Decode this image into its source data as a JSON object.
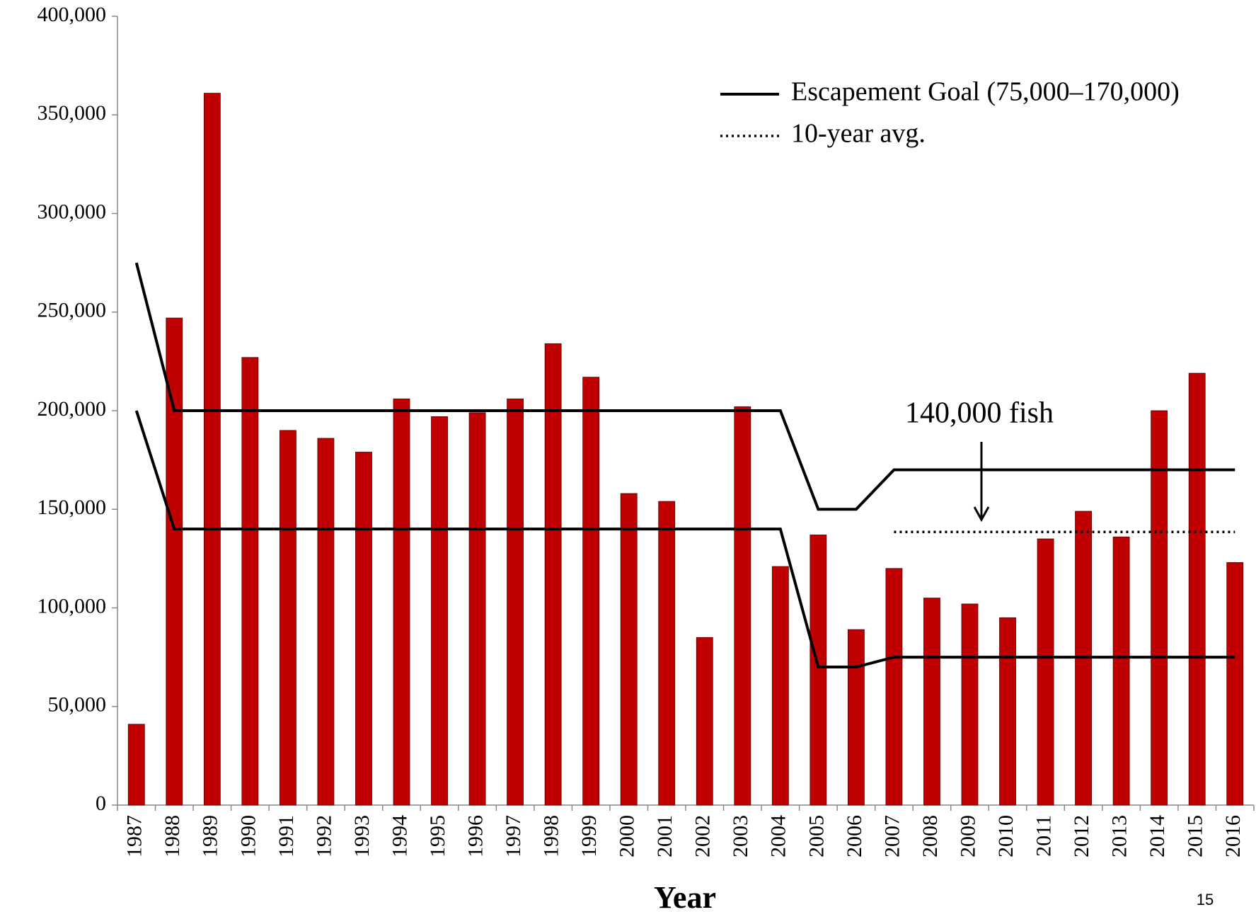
{
  "chart_data": {
    "type": "bar",
    "categories": [
      "1987",
      "1988",
      "1989",
      "1990",
      "1991",
      "1992",
      "1993",
      "1994",
      "1995",
      "1996",
      "1997",
      "1998",
      "1999",
      "2000",
      "2001",
      "2002",
      "2003",
      "2004",
      "2005",
      "2006",
      "2007",
      "2008",
      "2009",
      "2010",
      "2011",
      "2012",
      "2013",
      "2014",
      "2015",
      "2016"
    ],
    "values": [
      41000,
      247000,
      361000,
      227000,
      190000,
      186000,
      179000,
      206000,
      197000,
      199000,
      206000,
      234000,
      217000,
      158000,
      154000,
      85000,
      202000,
      121000,
      137000,
      89000,
      120000,
      105000,
      102000,
      95000,
      135000,
      149000,
      136000,
      200000,
      219000,
      123000
    ],
    "color": "#c00000",
    "lines": [
      {
        "name": "Escapement Goal (75,000–170,000)",
        "color": "#000000",
        "dash": "solid",
        "values": [
          275000,
          200000,
          200000,
          200000,
          200000,
          200000,
          200000,
          200000,
          200000,
          200000,
          200000,
          200000,
          200000,
          200000,
          200000,
          200000,
          200000,
          200000,
          150000,
          150000,
          170000,
          170000,
          170000,
          170000,
          170000,
          170000,
          170000,
          170000,
          170000,
          170000
        ]
      },
      {
        "color": "#000000",
        "dash": "solid",
        "values": [
          200000,
          140000,
          140000,
          140000,
          140000,
          140000,
          140000,
          140000,
          140000,
          140000,
          140000,
          140000,
          140000,
          140000,
          140000,
          140000,
          140000,
          140000,
          70000,
          70000,
          75000,
          75000,
          75000,
          75000,
          75000,
          75000,
          75000,
          75000,
          75000,
          75000
        ]
      },
      {
        "name": "10-year avg.",
        "color": "#000000",
        "dash": "dotted",
        "values": [
          null,
          null,
          null,
          null,
          null,
          null,
          null,
          null,
          null,
          null,
          null,
          null,
          null,
          null,
          null,
          null,
          null,
          null,
          null,
          null,
          138500,
          138500,
          138500,
          138500,
          138500,
          138500,
          138500,
          138500,
          138500,
          138500
        ]
      }
    ],
    "x_label": "Year",
    "annotation": "140,000 fish",
    "page_number": "15",
    "ylim": [
      0,
      400000
    ],
    "yticks": [
      0,
      {
        "value": 50000,
        "label": "50,000"
      },
      {
        "value": 100000,
        "label": "100,000"
      },
      {
        "value": 150000,
        "label": "150,000"
      },
      {
        "value": 200000,
        "label": "200,000"
      },
      {
        "value": 250000,
        "label": "250,000"
      },
      {
        "value": 300000,
        "label": "300,000"
      },
      {
        "value": 350000,
        "label": "350,000"
      },
      {
        "value": 400000,
        "label": "400,000"
      }
    ],
    "grid": false,
    "legend": "top-right"
  }
}
